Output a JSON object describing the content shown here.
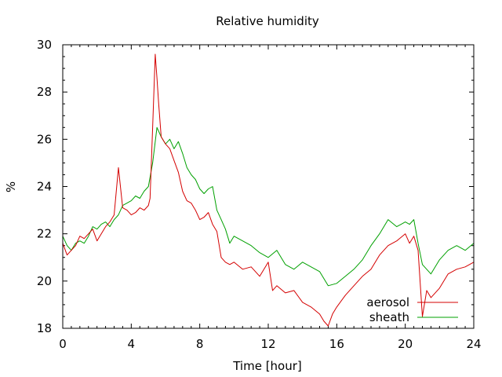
{
  "chart_data": {
    "type": "line",
    "title": "Relative humidity",
    "xlabel": "Time [hour]",
    "ylabel": "%",
    "xlim": [
      0,
      24
    ],
    "ylim": [
      18,
      30
    ],
    "xticks": [
      0,
      4,
      8,
      12,
      16,
      20,
      24
    ],
    "yticks": [
      18,
      20,
      22,
      24,
      26,
      28,
      30
    ],
    "grid": false,
    "legend_position": "bottom-right",
    "series": [
      {
        "name": "aerosol",
        "color": "#d40000",
        "x": [
          0,
          0.25,
          0.5,
          0.75,
          1,
          1.25,
          1.5,
          1.75,
          2,
          2.25,
          2.5,
          2.75,
          3,
          3.25,
          3.5,
          3.75,
          4,
          4.25,
          4.5,
          4.75,
          5,
          5.1,
          5.25,
          5.4,
          5.5,
          5.6,
          5.75,
          6,
          6.25,
          6.5,
          6.75,
          7,
          7.25,
          7.5,
          7.75,
          8,
          8.25,
          8.5,
          8.75,
          9,
          9.25,
          9.5,
          9.75,
          10,
          10.5,
          11,
          11.5,
          12,
          12.25,
          12.5,
          13,
          13.5,
          14,
          14.5,
          15,
          15.25,
          15.5,
          15.75,
          16,
          16.5,
          17,
          17.5,
          18,
          18.5,
          19,
          19.5,
          20,
          20.25,
          20.5,
          20.75,
          21,
          21.25,
          21.5,
          22,
          22.5,
          23,
          23.5,
          24
        ],
        "values": [
          21.6,
          21.1,
          21.3,
          21.5,
          21.9,
          21.8,
          22.0,
          22.2,
          21.7,
          22.0,
          22.3,
          22.5,
          22.8,
          24.8,
          23.1,
          23.0,
          22.8,
          22.9,
          23.1,
          23.0,
          23.2,
          23.5,
          26.5,
          29.6,
          28.6,
          27.5,
          26.1,
          25.8,
          25.6,
          25.1,
          24.6,
          23.8,
          23.4,
          23.3,
          23.0,
          22.6,
          22.7,
          22.9,
          22.4,
          22.1,
          21.0,
          20.8,
          20.7,
          20.8,
          20.5,
          20.6,
          20.2,
          20.8,
          19.6,
          19.8,
          19.5,
          19.6,
          19.1,
          18.9,
          18.6,
          18.3,
          18.1,
          18.6,
          18.9,
          19.4,
          19.8,
          20.2,
          20.5,
          21.1,
          21.5,
          21.7,
          22.0,
          21.6,
          21.9,
          21.3,
          18.5,
          19.6,
          19.3,
          19.7,
          20.3,
          20.5,
          20.6,
          20.8
        ]
      },
      {
        "name": "sheath",
        "color": "#00a000",
        "x": [
          0,
          0.25,
          0.5,
          0.75,
          1,
          1.25,
          1.5,
          1.75,
          2,
          2.25,
          2.5,
          2.75,
          3,
          3.25,
          3.5,
          3.75,
          4,
          4.25,
          4.5,
          4.75,
          5,
          5.25,
          5.5,
          5.75,
          6,
          6.25,
          6.5,
          6.75,
          7,
          7.25,
          7.5,
          7.75,
          8,
          8.25,
          8.5,
          8.75,
          9,
          9.25,
          9.5,
          9.75,
          10,
          10.5,
          11,
          11.5,
          12,
          12.5,
          13,
          13.5,
          14,
          14.5,
          15,
          15.5,
          16,
          16.5,
          17,
          17.5,
          18,
          18.5,
          19,
          19.5,
          20,
          20.25,
          20.5,
          20.75,
          21,
          21.5,
          22,
          22.5,
          23,
          23.5,
          24
        ],
        "values": [
          21.9,
          21.5,
          21.3,
          21.6,
          21.7,
          21.6,
          21.9,
          22.3,
          22.2,
          22.4,
          22.5,
          22.3,
          22.6,
          22.8,
          23.2,
          23.3,
          23.4,
          23.6,
          23.5,
          23.8,
          24.0,
          25.0,
          26.5,
          26.1,
          25.8,
          26.0,
          25.6,
          25.9,
          25.4,
          24.8,
          24.5,
          24.3,
          23.9,
          23.7,
          23.9,
          24.0,
          23.0,
          22.6,
          22.2,
          21.6,
          21.9,
          21.7,
          21.5,
          21.2,
          21.0,
          21.3,
          20.7,
          20.5,
          20.8,
          20.6,
          20.4,
          19.8,
          19.9,
          20.2,
          20.5,
          20.9,
          21.5,
          22.0,
          22.6,
          22.3,
          22.5,
          22.4,
          22.6,
          21.6,
          20.7,
          20.3,
          20.9,
          21.3,
          21.5,
          21.3,
          21.6
        ]
      }
    ]
  }
}
